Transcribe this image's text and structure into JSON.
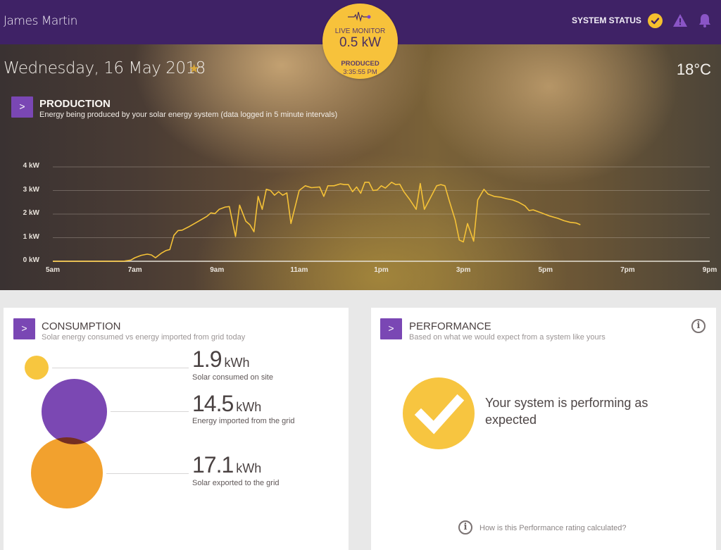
{
  "header": {
    "user_name": "James Martin",
    "system_status_label": "SYSTEM STATUS",
    "icons": [
      "check-circle-icon",
      "warning-icon",
      "bell-icon"
    ]
  },
  "live_monitor": {
    "label": "LIVE MONITOR",
    "value": "0.5 kW",
    "produced_label": "PRODUCED",
    "produced_time": "3:35:55 PM",
    "icon": "pulse-icon"
  },
  "hero": {
    "date": "Wednesday, 16 May 2018",
    "temperature": "18°C"
  },
  "production": {
    "title": "PRODUCTION",
    "subtitle": "Energy being produced by your solar energy system (data logged in 5 minute intervals)",
    "button_label": ">"
  },
  "chart_data": {
    "type": "line",
    "title": "PRODUCTION",
    "xlabel": "",
    "ylabel": "kW",
    "ylim": [
      0,
      4
    ],
    "xlim": [
      5,
      21
    ],
    "y_ticks": [
      "0 kW",
      "1 kW",
      "2 kW",
      "3 kW",
      "4 kW"
    ],
    "x_ticks": [
      "5am",
      "7am",
      "9am",
      "11am",
      "1pm",
      "3pm",
      "5pm",
      "7pm",
      "9pm"
    ],
    "grid": true,
    "line_color": "#f5c237",
    "series": [
      {
        "name": "Production (kW)",
        "points": [
          [
            5.0,
            0
          ],
          [
            6.5,
            0
          ],
          [
            6.75,
            0.01
          ],
          [
            6.9,
            0.05
          ],
          [
            7.0,
            0.15
          ],
          [
            7.15,
            0.25
          ],
          [
            7.3,
            0.3
          ],
          [
            7.4,
            0.27
          ],
          [
            7.5,
            0.15
          ],
          [
            7.65,
            0.35
          ],
          [
            7.75,
            0.45
          ],
          [
            7.85,
            0.5
          ],
          [
            7.95,
            1.1
          ],
          [
            8.05,
            1.3
          ],
          [
            8.15,
            1.32
          ],
          [
            8.3,
            1.45
          ],
          [
            8.45,
            1.6
          ],
          [
            8.6,
            1.75
          ],
          [
            8.75,
            1.9
          ],
          [
            8.85,
            2.05
          ],
          [
            8.95,
            2.02
          ],
          [
            9.05,
            2.2
          ],
          [
            9.2,
            2.3
          ],
          [
            9.3,
            2.32
          ],
          [
            9.45,
            1.05
          ],
          [
            9.55,
            2.38
          ],
          [
            9.7,
            1.7
          ],
          [
            9.8,
            1.55
          ],
          [
            9.9,
            1.25
          ],
          [
            10.0,
            2.75
          ],
          [
            10.1,
            2.2
          ],
          [
            10.2,
            3.05
          ],
          [
            10.3,
            3.0
          ],
          [
            10.4,
            2.8
          ],
          [
            10.5,
            2.95
          ],
          [
            10.6,
            2.8
          ],
          [
            10.7,
            2.9
          ],
          [
            10.8,
            1.6
          ],
          [
            11.0,
            3.0
          ],
          [
            11.15,
            3.2
          ],
          [
            11.3,
            3.12
          ],
          [
            11.5,
            3.15
          ],
          [
            11.6,
            2.75
          ],
          [
            11.7,
            3.2
          ],
          [
            11.85,
            3.2
          ],
          [
            12.0,
            3.28
          ],
          [
            12.1,
            3.25
          ],
          [
            12.2,
            3.25
          ],
          [
            12.3,
            2.95
          ],
          [
            12.4,
            3.15
          ],
          [
            12.5,
            2.88
          ],
          [
            12.6,
            3.35
          ],
          [
            12.7,
            3.35
          ],
          [
            12.8,
            3.0
          ],
          [
            12.9,
            3.02
          ],
          [
            13.0,
            3.2
          ],
          [
            13.1,
            3.1
          ],
          [
            13.25,
            3.35
          ],
          [
            13.35,
            3.25
          ],
          [
            13.45,
            3.27
          ],
          [
            13.55,
            2.95
          ],
          [
            13.7,
            2.6
          ],
          [
            13.85,
            2.2
          ],
          [
            13.95,
            3.3
          ],
          [
            14.05,
            2.2
          ],
          [
            14.2,
            2.7
          ],
          [
            14.35,
            3.2
          ],
          [
            14.45,
            3.25
          ],
          [
            14.55,
            3.2
          ],
          [
            14.65,
            2.6
          ],
          [
            14.8,
            1.75
          ],
          [
            14.9,
            0.9
          ],
          [
            15.0,
            0.82
          ],
          [
            15.1,
            1.6
          ],
          [
            15.25,
            0.85
          ],
          [
            15.35,
            2.6
          ],
          [
            15.5,
            3.05
          ],
          [
            15.6,
            2.85
          ],
          [
            15.75,
            2.75
          ],
          [
            15.9,
            2.72
          ],
          [
            16.05,
            2.65
          ],
          [
            16.2,
            2.6
          ],
          [
            16.35,
            2.5
          ],
          [
            16.5,
            2.35
          ],
          [
            16.6,
            2.15
          ],
          [
            16.7,
            2.18
          ],
          [
            16.9,
            2.05
          ],
          [
            17.1,
            1.92
          ],
          [
            17.3,
            1.82
          ],
          [
            17.45,
            1.72
          ],
          [
            17.6,
            1.65
          ],
          [
            17.75,
            1.62
          ],
          [
            17.85,
            1.55
          ]
        ]
      }
    ]
  },
  "consumption": {
    "title": "CONSUMPTION",
    "subtitle": "Solar energy consumed vs energy imported from grid today",
    "button_label": ">",
    "items": [
      {
        "value": "1.9",
        "unit": "kWh",
        "label": "Solar consumed on site",
        "color": "#f7c63f"
      },
      {
        "value": "14.5",
        "unit": "kWh",
        "label": "Energy imported from the grid",
        "color": "#7b48b3"
      },
      {
        "value": "17.1",
        "unit": "kWh",
        "label": "Solar exported to the grid",
        "color": "#f2a12e"
      }
    ]
  },
  "performance": {
    "title": "PERFORMANCE",
    "subtitle": "Based on what we would expect from a system like yours",
    "button_label": ">",
    "status_text": "Your system is performing as expected",
    "link_text": "How is this Performance rating calculated?",
    "info_icon": "i"
  },
  "colors": {
    "brand_purple": "#3f2266",
    "accent_purple": "#7a47b4",
    "accent_yellow": "#f7c23b",
    "accent_orange": "#f2a12e"
  }
}
